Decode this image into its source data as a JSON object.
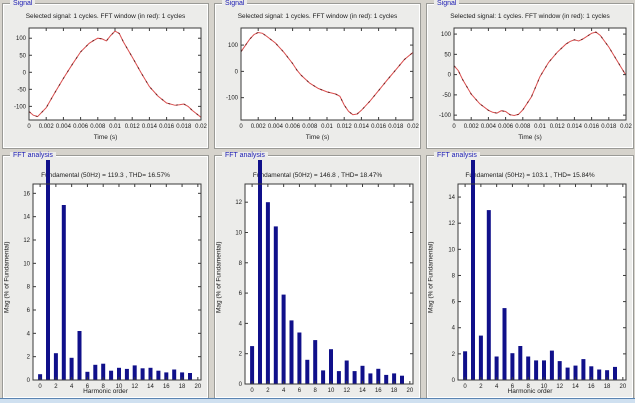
{
  "window": {
    "bg": "#d6d3cc",
    "panel_bg": "#ececea",
    "bottom_strip_color": "#cfe0f0"
  },
  "colors": {
    "group_label_blue": "#1b1bb3",
    "trace_red": "#d94f4f",
    "trace_dark": "#6e2222",
    "bar_navy": "#10108a",
    "axis": "#3a3a3a",
    "plot_bg": "#ffffff"
  },
  "panels": {
    "signal_label": "Signal",
    "fft_label": "FFT analysis",
    "signal_title": "Selected signal: 1 cycles. FFT window (in red): 1 cycles",
    "time_xlabel": "Time (s)",
    "fft_ylabel": "Mag (% of Fundamental)",
    "fft_titles": [
      "Fundamental (50Hz) = 119.3 , THD= 16.57%",
      "Fundamental (50Hz) = 146.8 , THD= 18.47%",
      "Fundamental (50Hz) = 103.1 , THD= 15.84%"
    ],
    "fft_xlabels": [
      "Harmonic order",
      "",
      "Harmonic order"
    ]
  },
  "chart_data": [
    {
      "type": "line",
      "title": "Selected signal: 1 cycles. FFT window (in red): 1 cycles",
      "xlabel": "Time (s)",
      "ylabel": "",
      "xlim": [
        0,
        0.02
      ],
      "ylim": [
        -140,
        130
      ],
      "grid": false,
      "xticks": [
        0,
        0.002,
        0.004,
        0.006,
        0.008,
        0.01,
        0.012,
        0.014,
        0.016,
        0.018,
        0.02
      ],
      "xtick_labels": [
        "0",
        "0.002",
        "0.004",
        "0.006",
        "0.008",
        "0.01",
        "0.012",
        "0.014",
        "0.016",
        "0.018",
        "0.02"
      ],
      "yticks": [
        -100,
        -50,
        0,
        50,
        100
      ],
      "ytick_labels": [
        "-100",
        "-50",
        "0",
        "50",
        "100"
      ],
      "x": [
        0,
        0.0005,
        0.001,
        0.002,
        0.003,
        0.004,
        0.005,
        0.006,
        0.007,
        0.0075,
        0.008,
        0.0085,
        0.009,
        0.0095,
        0.01,
        0.0105,
        0.011,
        0.012,
        0.013,
        0.014,
        0.015,
        0.016,
        0.017,
        0.0175,
        0.018,
        0.0185,
        0.019,
        0.0195,
        0.02
      ],
      "y": [
        -115,
        -126,
        -130,
        -104,
        -60,
        -18,
        22,
        60,
        85,
        93,
        100,
        98,
        92,
        108,
        121,
        114,
        88,
        45,
        0,
        -42,
        -70,
        -90,
        -97,
        -95,
        -93,
        -100,
        -112,
        -122,
        -132
      ]
    },
    {
      "type": "line",
      "title": "Selected signal: 1 cycles. FFT window (in red): 1 cycles",
      "xlabel": "Time (s)",
      "ylabel": "",
      "xlim": [
        0,
        0.02
      ],
      "ylim": [
        -185,
        165
      ],
      "grid": false,
      "xticks": [
        0,
        0.002,
        0.004,
        0.006,
        0.008,
        0.01,
        0.012,
        0.014,
        0.016,
        0.018,
        0.02
      ],
      "xtick_labels": [
        "0",
        "0.002",
        "0.004",
        "0.006",
        "0.008",
        "0.01",
        "0.012",
        "0.014",
        "0.016",
        "0.018",
        "0.02"
      ],
      "yticks": [
        -100,
        0,
        100
      ],
      "ytick_labels": [
        "-100",
        "0",
        "100"
      ],
      "x": [
        0,
        0.001,
        0.0015,
        0.002,
        0.0025,
        0.003,
        0.004,
        0.005,
        0.006,
        0.0065,
        0.007,
        0.008,
        0.009,
        0.01,
        0.011,
        0.0115,
        0.012,
        0.0125,
        0.013,
        0.0135,
        0.014,
        0.015,
        0.016,
        0.017,
        0.018,
        0.019,
        0.02
      ],
      "y": [
        75,
        122,
        140,
        148,
        145,
        133,
        108,
        72,
        30,
        5,
        -15,
        -45,
        -65,
        -78,
        -86,
        -95,
        -128,
        -152,
        -165,
        -162,
        -148,
        -113,
        -73,
        -33,
        6,
        45,
        72
      ]
    },
    {
      "type": "line",
      "title": "Selected signal: 1 cycles. FFT window (in red): 1 cycles",
      "xlabel": "Time (s)",
      "ylabel": "",
      "xlim": [
        0,
        0.02
      ],
      "ylim": [
        -112,
        115
      ],
      "grid": false,
      "xticks": [
        0,
        0.002,
        0.004,
        0.006,
        0.008,
        0.01,
        0.012,
        0.014,
        0.016,
        0.018,
        0.02
      ],
      "xtick_labels": [
        "0",
        "0.002",
        "0.004",
        "0.006",
        "0.008",
        "0.01",
        "0.012",
        "0.014",
        "0.016",
        "0.018",
        "0.02"
      ],
      "yticks": [
        -100,
        -50,
        0,
        50,
        100
      ],
      "ytick_labels": [
        "-100",
        "-50",
        "0",
        "50",
        "100"
      ],
      "x": [
        0,
        0.0005,
        0.001,
        0.002,
        0.003,
        0.004,
        0.0045,
        0.005,
        0.0055,
        0.006,
        0.0065,
        0.007,
        0.0075,
        0.008,
        0.009,
        0.0095,
        0.01,
        0.011,
        0.012,
        0.013,
        0.0135,
        0.014,
        0.0145,
        0.015,
        0.016,
        0.0165,
        0.017,
        0.018,
        0.019,
        0.02
      ],
      "y": [
        22,
        10,
        -12,
        -48,
        -72,
        -88,
        -93,
        -95,
        -89,
        -91,
        -99,
        -101,
        -98,
        -87,
        -55,
        -30,
        -5,
        30,
        55,
        75,
        82,
        86,
        83,
        88,
        102,
        105,
        97,
        68,
        33,
        -2
      ]
    },
    {
      "type": "bar",
      "title": "Fundamental (50Hz) = 119.3 , THD= 16.57%",
      "xlabel": "Harmonic order",
      "ylabel": "Mag (% of Fundamental)",
      "xlim": [
        -0.9,
        20.4
      ],
      "ylim": [
        0,
        16.8
      ],
      "grid": false,
      "xticks": [
        0,
        2,
        4,
        6,
        8,
        10,
        12,
        14,
        16,
        18,
        20
      ],
      "xtick_labels": [
        "0",
        "2",
        "4",
        "6",
        "8",
        "10",
        "12",
        "14",
        "16",
        "18",
        "20"
      ],
      "yticks": [
        0,
        2,
        4,
        6,
        8,
        10,
        12,
        14,
        16
      ],
      "ytick_labels": [
        "0",
        "2",
        "4",
        "6",
        "8",
        "10",
        "12",
        "14",
        "16"
      ],
      "categories": [
        0,
        1,
        2,
        3,
        4,
        5,
        6,
        7,
        8,
        9,
        10,
        11,
        12,
        13,
        14,
        15,
        16,
        17,
        18,
        19
      ],
      "values": [
        0.5,
        100,
        2.3,
        15.0,
        1.9,
        4.2,
        0.7,
        1.3,
        1.4,
        0.8,
        1.05,
        0.95,
        1.25,
        1.0,
        1.05,
        0.8,
        0.65,
        0.9,
        0.65,
        0.6
      ],
      "fundamental_clipped": true
    },
    {
      "type": "bar",
      "title": "Fundamental (50Hz) = 146.8 , THD= 18.47%",
      "xlabel": "",
      "ylabel": "Mag (% of Fundamental)",
      "xlim": [
        -0.9,
        20.4
      ],
      "ylim": [
        0,
        13.2
      ],
      "grid": false,
      "xticks": [
        0,
        2,
        4,
        6,
        8,
        10,
        12,
        14,
        16,
        18,
        20
      ],
      "xtick_labels": [
        "0",
        "2",
        "4",
        "6",
        "8",
        "10",
        "12",
        "14",
        "16",
        "18",
        "20"
      ],
      "yticks": [
        0,
        2,
        4,
        6,
        8,
        10,
        12
      ],
      "ytick_labels": [
        "0",
        "2",
        "4",
        "6",
        "8",
        "10",
        "12"
      ],
      "categories": [
        0,
        1,
        2,
        3,
        4,
        5,
        6,
        7,
        8,
        9,
        10,
        11,
        12,
        13,
        14,
        15,
        16,
        17,
        18,
        19
      ],
      "values": [
        2.5,
        100,
        12.0,
        10.4,
        5.9,
        4.2,
        3.4,
        1.6,
        2.9,
        0.9,
        2.3,
        0.85,
        1.55,
        0.85,
        1.2,
        0.7,
        1.0,
        0.6,
        0.7,
        0.55
      ],
      "fundamental_clipped": true
    },
    {
      "type": "bar",
      "title": "Fundamental (50Hz) = 103.1 , THD= 15.84%",
      "xlabel": "Harmonic order",
      "ylabel": "Mag (% of Fundamental)",
      "xlim": [
        -0.9,
        20.4
      ],
      "ylim": [
        0,
        15.0
      ],
      "grid": false,
      "xticks": [
        0,
        2,
        4,
        6,
        8,
        10,
        12,
        14,
        16,
        18,
        20
      ],
      "xtick_labels": [
        "0",
        "2",
        "4",
        "6",
        "8",
        "10",
        "12",
        "14",
        "16",
        "18",
        "20"
      ],
      "yticks": [
        0,
        2,
        4,
        6,
        8,
        10,
        12,
        14
      ],
      "ytick_labels": [
        "0",
        "2",
        "4",
        "6",
        "8",
        "10",
        "12",
        "14"
      ],
      "categories": [
        0,
        1,
        2,
        3,
        4,
        5,
        6,
        7,
        8,
        9,
        10,
        11,
        12,
        13,
        14,
        15,
        16,
        17,
        18,
        19
      ],
      "values": [
        2.2,
        100,
        3.4,
        13.0,
        1.8,
        5.5,
        2.05,
        2.6,
        1.8,
        1.5,
        1.5,
        2.25,
        1.45,
        0.95,
        1.1,
        1.6,
        1.05,
        0.8,
        0.75,
        1.0
      ],
      "fundamental_clipped": true
    }
  ]
}
